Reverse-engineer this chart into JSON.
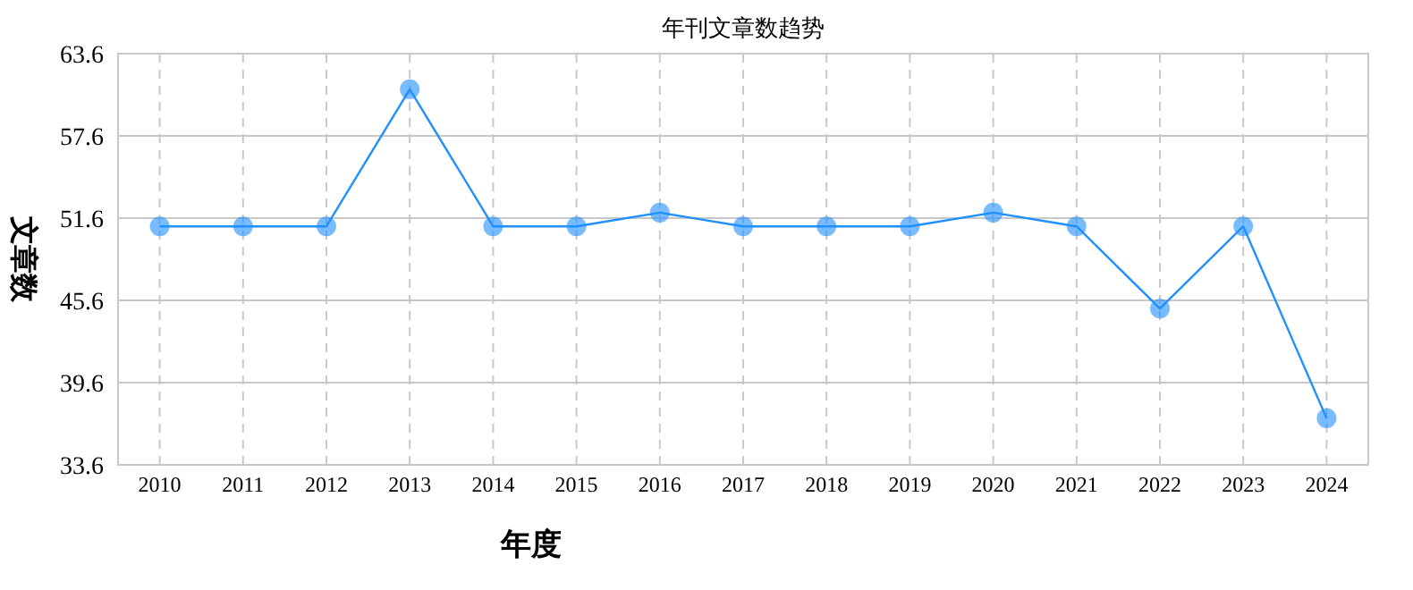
{
  "chart_data": {
    "type": "line",
    "title": "年刊文章数趋势",
    "xlabel": "年度",
    "ylabel": "文章数",
    "categories": [
      "2010",
      "2011",
      "2012",
      "2013",
      "2014",
      "2015",
      "2016",
      "2017",
      "2018",
      "2019",
      "2020",
      "2021",
      "2022",
      "2023",
      "2024"
    ],
    "series": [
      {
        "color": "#1e90ff",
        "values": [
          51,
          51,
          51,
          61,
          51,
          51,
          52,
          51,
          51,
          51,
          52,
          51,
          45,
          51,
          37
        ]
      }
    ],
    "ylim": [
      33.6,
      63.6
    ],
    "yticks": [
      33.6,
      39.6,
      45.6,
      51.6,
      57.6,
      63.6
    ],
    "grid": true,
    "marker": "circle",
    "line_style": "solid"
  }
}
